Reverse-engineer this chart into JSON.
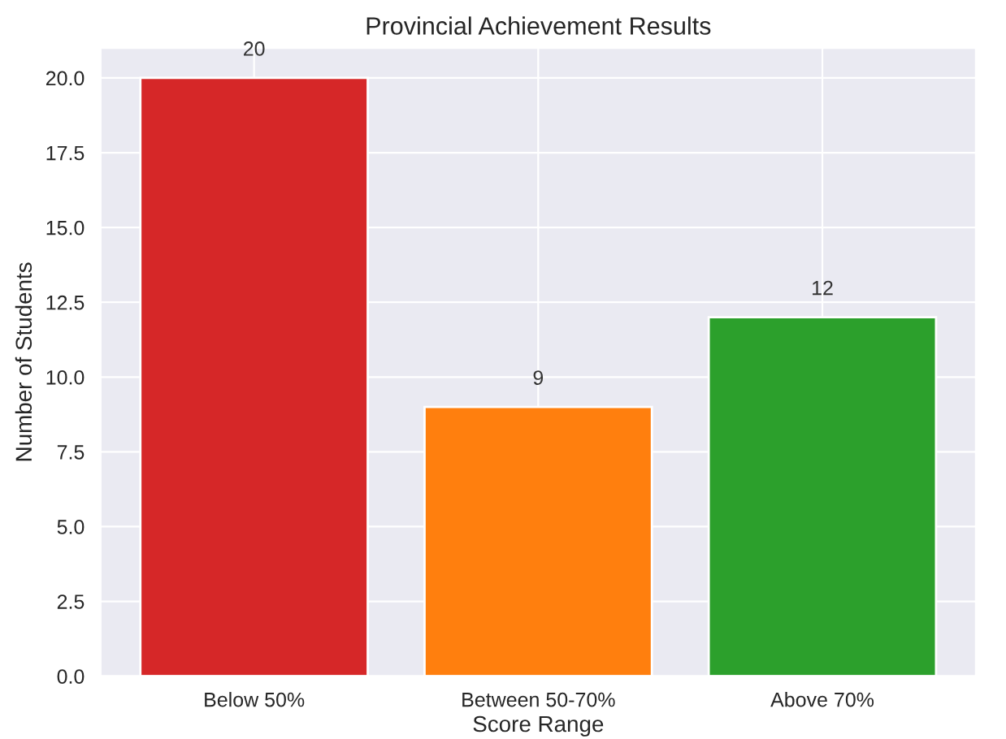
{
  "chart_data": {
    "type": "bar",
    "title": "Provincial Achievement Results",
    "xlabel": "Score Range",
    "ylabel": "Number of Students",
    "categories": [
      "Below 50%",
      "Between 50-70%",
      "Above 70%"
    ],
    "values": [
      20,
      9,
      12
    ],
    "colors": [
      "#d62728",
      "#ff7f0e",
      "#2ca02c"
    ],
    "ylim": [
      0,
      21
    ],
    "yticks": [
      {
        "value": 0,
        "label": "0.0"
      },
      {
        "value": 2.5,
        "label": "2.5"
      },
      {
        "value": 5,
        "label": "5.0"
      },
      {
        "value": 7.5,
        "label": "7.5"
      },
      {
        "value": 10,
        "label": "10.0"
      },
      {
        "value": 12.5,
        "label": "12.5"
      },
      {
        "value": 15,
        "label": "15.0"
      },
      {
        "value": 17.5,
        "label": "17.5"
      },
      {
        "value": 20,
        "label": "20.0"
      }
    ],
    "grid": true,
    "data_labels": true
  }
}
